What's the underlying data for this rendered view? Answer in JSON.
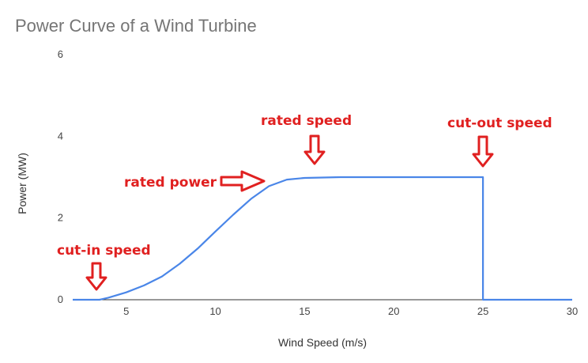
{
  "chart_data": {
    "type": "line",
    "title": "Power Curve of a Wind Turbine",
    "xlabel": "Wind Speed (m/s)",
    "ylabel": "Power (MW)",
    "xlim": [
      2,
      30
    ],
    "ylim": [
      0,
      6
    ],
    "x_ticks": [
      5,
      10,
      15,
      20,
      25,
      30
    ],
    "y_ticks": [
      0,
      2,
      4,
      6
    ],
    "grid": false,
    "legend": "none",
    "series": [
      {
        "color": "#4a86e8",
        "x": [
          2,
          3.5,
          4,
          5,
          6,
          7,
          8,
          9,
          10,
          11,
          12,
          13,
          14,
          15,
          16,
          17,
          18,
          20,
          25,
          25,
          30
        ],
        "y": [
          0,
          0,
          0.05,
          0.18,
          0.35,
          0.57,
          0.88,
          1.25,
          1.67,
          2.08,
          2.47,
          2.78,
          2.94,
          2.98,
          2.99,
          3.0,
          3.0,
          3.0,
          3.0,
          0,
          0
        ]
      }
    ],
    "annotations": [
      {
        "id": "cut-in",
        "text": "cut-in speed",
        "x": 3.5,
        "y": 0
      },
      {
        "id": "rated-power",
        "text": "rated power",
        "x": 13,
        "y": 2.95
      },
      {
        "id": "rated-speed",
        "text": "rated speed",
        "x": 15.5,
        "y": 3.0
      },
      {
        "id": "cut-out",
        "text": "cut-out speed",
        "x": 25,
        "y": 3.0
      }
    ],
    "annotation_color": "#e02020"
  }
}
